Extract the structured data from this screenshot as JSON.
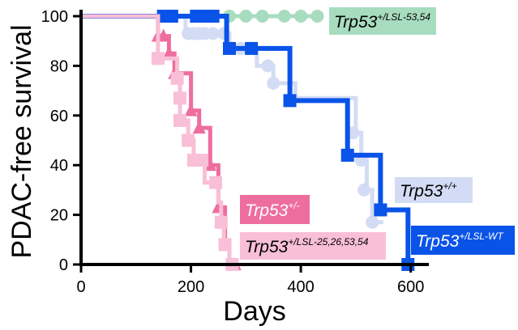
{
  "chart_data": {
    "type": "line",
    "subtype": "kaplan-meier step plot",
    "xlabel": "Days",
    "ylabel": "PDAC-free survival",
    "xlim": [
      0,
      630
    ],
    "ylim": [
      0,
      100
    ],
    "xticks": [
      0,
      200,
      400,
      600
    ],
    "yticks": [
      0,
      20,
      40,
      60,
      80,
      100
    ],
    "grid": false,
    "series": [
      {
        "name_base": "Trp53",
        "name_sup": "+/LSL-53,54",
        "color": "#a8dcbf",
        "label_bg": "#a8dcbf",
        "label_fg": "#000000",
        "marker": "circle",
        "steps": [
          [
            0,
            100
          ],
          [
            430,
            100
          ]
        ],
        "markers": [
          [
            270,
            100
          ],
          [
            300,
            100
          ],
          [
            330,
            100
          ],
          [
            370,
            100
          ],
          [
            400,
            100
          ],
          [
            430,
            100
          ]
        ]
      },
      {
        "name_base": "Trp53",
        "name_sup": "+/+",
        "color": "#d3dcf4",
        "label_bg": "#d3dcf4",
        "label_fg": "#000000",
        "marker": "circle",
        "steps": [
          [
            0,
            100
          ],
          [
            190,
            100
          ],
          [
            190,
            93
          ],
          [
            270,
            93
          ],
          [
            270,
            87
          ],
          [
            320,
            87
          ],
          [
            320,
            80
          ],
          [
            350,
            80
          ],
          [
            350,
            73
          ],
          [
            390,
            73
          ],
          [
            390,
            67
          ],
          [
            500,
            67
          ],
          [
            500,
            53
          ],
          [
            510,
            53
          ],
          [
            510,
            42
          ],
          [
            520,
            42
          ],
          [
            520,
            30
          ],
          [
            530,
            30
          ],
          [
            530,
            17
          ],
          [
            550,
            17
          ]
        ],
        "markers": [
          [
            195,
            93
          ],
          [
            205,
            93
          ],
          [
            215,
            93
          ],
          [
            225,
            93
          ],
          [
            240,
            93
          ],
          [
            260,
            93
          ],
          [
            290,
            87
          ],
          [
            305,
            87
          ],
          [
            340,
            80
          ],
          [
            350,
            73
          ],
          [
            495,
            53
          ],
          [
            510,
            42
          ],
          [
            515,
            30
          ],
          [
            530,
            17
          ]
        ]
      },
      {
        "name_base": "Trp53",
        "name_sup": "+/LSL-WT",
        "color": "#0a53e8",
        "label_bg": "#0a53e8",
        "label_fg": "#ffffff",
        "marker": "square",
        "steps": [
          [
            0,
            100
          ],
          [
            265,
            100
          ],
          [
            265,
            87
          ],
          [
            380,
            87
          ],
          [
            380,
            66
          ],
          [
            485,
            66
          ],
          [
            485,
            44
          ],
          [
            545,
            44
          ],
          [
            545,
            22
          ],
          [
            595,
            22
          ],
          [
            595,
            0
          ]
        ],
        "markers": [
          [
            150,
            100
          ],
          [
            165,
            100
          ],
          [
            210,
            100
          ],
          [
            220,
            100
          ],
          [
            240,
            100
          ],
          [
            270,
            87
          ],
          [
            310,
            87
          ],
          [
            380,
            66
          ],
          [
            485,
            44
          ],
          [
            545,
            22
          ],
          [
            595,
            0
          ]
        ]
      },
      {
        "name_base": "Trp53",
        "name_sup": "+/-",
        "color": "#ee6d9f",
        "label_bg": "#ee6d9f",
        "label_fg": "#ffffff",
        "marker": "triangle",
        "steps": [
          [
            0,
            100
          ],
          [
            140,
            100
          ],
          [
            140,
            92
          ],
          [
            160,
            92
          ],
          [
            160,
            85
          ],
          [
            170,
            85
          ],
          [
            170,
            77
          ],
          [
            200,
            77
          ],
          [
            200,
            62
          ],
          [
            215,
            62
          ],
          [
            215,
            55
          ],
          [
            235,
            55
          ],
          [
            235,
            40
          ],
          [
            250,
            40
          ],
          [
            250,
            23
          ],
          [
            262,
            23
          ],
          [
            262,
            8
          ],
          [
            270,
            8
          ],
          [
            270,
            0
          ],
          [
            280,
            0
          ]
        ],
        "markers": [
          [
            140,
            92
          ],
          [
            150,
            92
          ],
          [
            160,
            85
          ],
          [
            170,
            77
          ],
          [
            200,
            62
          ],
          [
            215,
            55
          ],
          [
            235,
            40
          ],
          [
            250,
            23
          ],
          [
            262,
            8
          ],
          [
            280,
            0
          ]
        ]
      },
      {
        "name_base": "Trp53",
        "name_sup": "+/LSL-25,26,53,54",
        "color": "#f9bfd6",
        "label_bg": "#f9bfd6",
        "label_fg": "#000000",
        "marker": "square",
        "steps": [
          [
            0,
            100
          ],
          [
            140,
            100
          ],
          [
            140,
            83
          ],
          [
            175,
            83
          ],
          [
            175,
            75
          ],
          [
            180,
            75
          ],
          [
            180,
            58
          ],
          [
            195,
            58
          ],
          [
            195,
            50
          ],
          [
            205,
            50
          ],
          [
            205,
            42
          ],
          [
            225,
            42
          ],
          [
            225,
            33
          ],
          [
            250,
            33
          ],
          [
            250,
            25
          ],
          [
            255,
            25
          ],
          [
            255,
            17
          ],
          [
            260,
            17
          ],
          [
            260,
            8
          ],
          [
            270,
            8
          ],
          [
            270,
            0
          ],
          [
            280,
            0
          ]
        ],
        "markers": [
          [
            140,
            83
          ],
          [
            175,
            75
          ],
          [
            180,
            67
          ],
          [
            180,
            58
          ],
          [
            195,
            50
          ],
          [
            205,
            42
          ],
          [
            220,
            42
          ],
          [
            245,
            33
          ],
          [
            255,
            17
          ],
          [
            262,
            8
          ],
          [
            275,
            0
          ]
        ]
      }
    ]
  }
}
